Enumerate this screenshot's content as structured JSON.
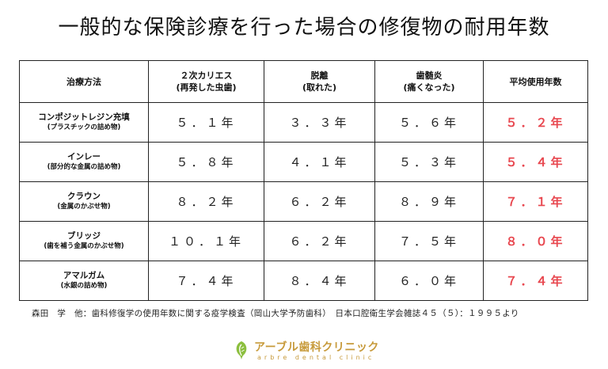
{
  "title": "一般的な保険診療を行った場合の修復物の耐用年数",
  "table": {
    "headers": [
      {
        "line1": "治療方法",
        "line2": ""
      },
      {
        "line1": "２次カリエス",
        "line2": "(再発した虫歯)"
      },
      {
        "line1": "脱離",
        "line2": "(取れた)"
      },
      {
        "line1": "歯髄炎",
        "line2": "(痛くなった)"
      },
      {
        "line1": "平均使用年数",
        "line2": ""
      }
    ],
    "rows": [
      {
        "name": "コンポジットレジン充填",
        "sub": "(プラスチックの詰め物)",
        "caries": "５．１年",
        "detach": "３．３年",
        "pulpitis": "５．６年",
        "average": "５．２年"
      },
      {
        "name": "インレー",
        "sub": "(部分的な金属の詰め物)",
        "caries": "５．８年",
        "detach": "４．１年",
        "pulpitis": "５．３年",
        "average": "５．４年"
      },
      {
        "name": "クラウン",
        "sub": "(金属のかぶせ物)",
        "caries": "８．２年",
        "detach": "６．２年",
        "pulpitis": "８．９年",
        "average": "７．１年"
      },
      {
        "name": "ブリッジ",
        "sub": "(歯を補う金属のかぶせ物)",
        "caries": "１０．１年",
        "detach": "６．２年",
        "pulpitis": "７．５年",
        "average": "８．０年"
      },
      {
        "name": "アマルガム",
        "sub": "(水銀の詰め物)",
        "caries": "７．４年",
        "detach": "８．４年",
        "pulpitis": "６．０年",
        "average": "７．４年"
      }
    ]
  },
  "source": "森田　学　他：歯科修復学の使用年数に関する疫学検査（岡山大学予防歯科）　日本口腔衛生学会雑誌４５（５）：１９９５より",
  "logo": {
    "name": "アーブル歯科クリニック",
    "sub": "arbre dental clinic",
    "icon": "tree-leaf-icon"
  },
  "colors": {
    "average_text": "#e8474f",
    "logo_gold": "#c79a3a",
    "logo_green": "#8cbf3f"
  }
}
